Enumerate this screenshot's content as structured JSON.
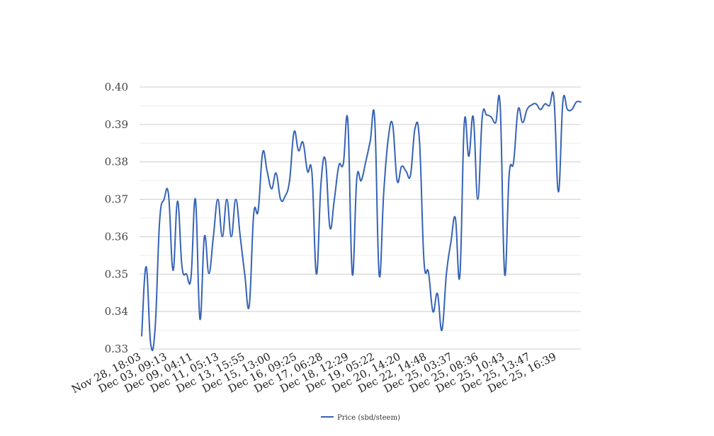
{
  "chart_data": {
    "type": "line",
    "title": "",
    "xlabel": "",
    "ylabel": "",
    "ylim": [
      0.33,
      0.4
    ],
    "yticks": [
      "0.33",
      "0.34",
      "0.35",
      "0.36",
      "0.37",
      "0.38",
      "0.39",
      "0.40"
    ],
    "xtick_labels": [
      "Nov 28, 18:03",
      "Dec 03, 09:13",
      "Dec 09, 04:11",
      "Dec 11, 05:13",
      "Dec 13, 15:55",
      "Dec 15, 13:00",
      "Dec 16, 09:25",
      "Dec 17, 06:28",
      "Dec 18, 12:29",
      "Dec 19, 05:22",
      "Dec 20, 14:20",
      "Dec 22, 14:48",
      "Dec 25, 03:37",
      "Dec 25, 08:36",
      "Dec 25, 10:43",
      "Dec 25, 13:47",
      "Dec 25, 16:39"
    ],
    "grid": true,
    "legend_position": "bottom",
    "series": [
      {
        "name": "Price (sbd/steem)",
        "color": "#3563b5",
        "values": [
          0.3335,
          0.352,
          0.3315,
          0.3355,
          0.364,
          0.37,
          0.3712,
          0.351,
          0.3695,
          0.352,
          0.35,
          0.349,
          0.37,
          0.338,
          0.36,
          0.3502,
          0.36,
          0.37,
          0.36,
          0.37,
          0.36,
          0.37,
          0.36,
          0.35,
          0.3415,
          0.366,
          0.367,
          0.3825,
          0.3775,
          0.3728,
          0.377,
          0.37,
          0.3708,
          0.375,
          0.388,
          0.383,
          0.3852,
          0.3775,
          0.377,
          0.35,
          0.374,
          0.3805,
          0.3625,
          0.37,
          0.379,
          0.3795,
          0.391,
          0.35,
          0.3755,
          0.375,
          0.38,
          0.3855,
          0.3915,
          0.3498,
          0.3715,
          0.386,
          0.39,
          0.375,
          0.3788,
          0.3775,
          0.3765,
          0.389,
          0.3855,
          0.3535,
          0.3505,
          0.34,
          0.3448,
          0.335,
          0.35,
          0.3585,
          0.365,
          0.3495,
          0.3905,
          0.3815,
          0.392,
          0.37,
          0.392,
          0.3925,
          0.392,
          0.3905,
          0.395,
          0.35,
          0.3765,
          0.38,
          0.394,
          0.3905,
          0.394,
          0.3952,
          0.3955,
          0.394,
          0.3955,
          0.395,
          0.397,
          0.372,
          0.3962,
          0.394,
          0.394,
          0.396,
          0.396
        ]
      }
    ]
  }
}
